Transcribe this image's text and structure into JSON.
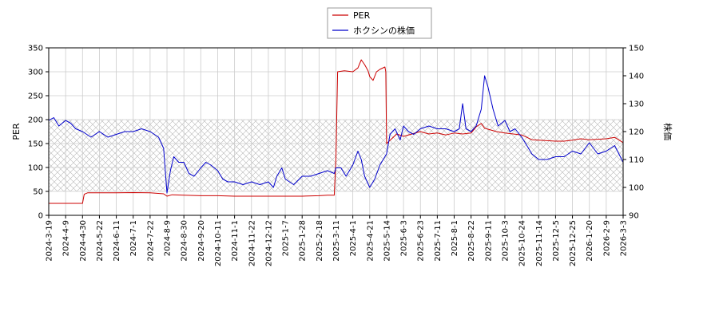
{
  "chart_data": {
    "type": "line",
    "title": "",
    "legend": {
      "placement": "top-center"
    },
    "grid": true,
    "band": {
      "axis": "left",
      "range": [
        50,
        200
      ],
      "style": "crosshatch"
    },
    "x_ticks": [
      "2024-3-19",
      "2024-4-9",
      "2024-4-30",
      "2024-5-22",
      "2024-6-11",
      "2024-7-1",
      "2024-7-22",
      "2024-8-9",
      "2024-8-30",
      "2024-9-20",
      "2024-10-11",
      "2024-11-1",
      "2024-11-22",
      "2024-12-12",
      "2025-1-7",
      "2025-1-28",
      "2025-2-18",
      "2025-3-11",
      "2025-4-1",
      "2025-4-21",
      "2025-5-14",
      "2025-6-3",
      "2025-6-23",
      "2025-7-11",
      "2025-8-1",
      "2025-8-22",
      "2025-9-11",
      "2025-10-3",
      "2025-10-24",
      "2025-11-14",
      "2025-12-5",
      "2025-12-25",
      "2026-1-20",
      "2026-2-9",
      "2026-3-3"
    ],
    "y_left": {
      "label": "PER",
      "ylim": [
        0,
        350
      ],
      "ticks": [
        0,
        50,
        100,
        150,
        200,
        250,
        300,
        350
      ]
    },
    "y_right": {
      "label": "株価",
      "ylim": [
        90,
        150
      ],
      "ticks": [
        90,
        100,
        110,
        120,
        130,
        140,
        150
      ]
    },
    "series": [
      {
        "name": "PER",
        "axis": "left",
        "color": "#cc0000",
        "points": [
          [
            0,
            25
          ],
          [
            1,
            25
          ],
          [
            2,
            25
          ],
          [
            2.1,
            44
          ],
          [
            2.3,
            47
          ],
          [
            3,
            47
          ],
          [
            4,
            47
          ],
          [
            5,
            47.5
          ],
          [
            6,
            47
          ],
          [
            6.8,
            45
          ],
          [
            7,
            40
          ],
          [
            7.3,
            43
          ],
          [
            8,
            42
          ],
          [
            9,
            41
          ],
          [
            10,
            41
          ],
          [
            11,
            40
          ],
          [
            12,
            40
          ],
          [
            13,
            40
          ],
          [
            14,
            40
          ],
          [
            15,
            40
          ],
          [
            16,
            41
          ],
          [
            16.5,
            42
          ],
          [
            16.9,
            42
          ],
          [
            17.0,
            120
          ],
          [
            17.1,
            300
          ],
          [
            17.5,
            302
          ],
          [
            18,
            300
          ],
          [
            18.3,
            308
          ],
          [
            18.5,
            325
          ],
          [
            18.7,
            315
          ],
          [
            18.9,
            302
          ],
          [
            19.0,
            290
          ],
          [
            19.2,
            282
          ],
          [
            19.4,
            300
          ],
          [
            19.6,
            305
          ],
          [
            19.9,
            310
          ],
          [
            19.95,
            300
          ],
          [
            20.0,
            150
          ],
          [
            20.3,
            160
          ],
          [
            20.6,
            170
          ],
          [
            21,
            165
          ],
          [
            21.5,
            170
          ],
          [
            22,
            175
          ],
          [
            22.5,
            170
          ],
          [
            23,
            172
          ],
          [
            23.5,
            168
          ],
          [
            24,
            172
          ],
          [
            24.5,
            170
          ],
          [
            25,
            172
          ],
          [
            25.3,
            185
          ],
          [
            25.6,
            192
          ],
          [
            25.8,
            182
          ],
          [
            26,
            180
          ],
          [
            26.5,
            175
          ],
          [
            27,
            172
          ],
          [
            27.5,
            170
          ],
          [
            28,
            168
          ],
          [
            28.3,
            163
          ],
          [
            28.6,
            158
          ],
          [
            29,
            157
          ],
          [
            30,
            155
          ],
          [
            30.5,
            155
          ],
          [
            31,
            157
          ],
          [
            31.5,
            160
          ],
          [
            32,
            158
          ],
          [
            33,
            160
          ],
          [
            33.5,
            163
          ],
          [
            34,
            152
          ],
          [
            34.5,
            153
          ],
          [
            35,
            150
          ]
        ]
      },
      {
        "name": "ホクシンの株価",
        "axis": "right",
        "color": "#0000cc",
        "points": [
          [
            0,
            124
          ],
          [
            0.3,
            125
          ],
          [
            0.6,
            122
          ],
          [
            1,
            124
          ],
          [
            1.3,
            123
          ],
          [
            1.6,
            121
          ],
          [
            2,
            120
          ],
          [
            2.5,
            118
          ],
          [
            3,
            120
          ],
          [
            3.5,
            118
          ],
          [
            4,
            119
          ],
          [
            4.5,
            120
          ],
          [
            5,
            120
          ],
          [
            5.5,
            121
          ],
          [
            6,
            120
          ],
          [
            6.5,
            118
          ],
          [
            6.8,
            114
          ],
          [
            7,
            98
          ],
          [
            7.2,
            106
          ],
          [
            7.4,
            111
          ],
          [
            7.7,
            109
          ],
          [
            8,
            109
          ],
          [
            8.3,
            105
          ],
          [
            8.6,
            104
          ],
          [
            9,
            107
          ],
          [
            9.3,
            109
          ],
          [
            9.6,
            108
          ],
          [
            10,
            106
          ],
          [
            10.3,
            103
          ],
          [
            10.6,
            102
          ],
          [
            11,
            102
          ],
          [
            11.5,
            101
          ],
          [
            12,
            102
          ],
          [
            12.5,
            101
          ],
          [
            13,
            102
          ],
          [
            13.3,
            100
          ],
          [
            13.5,
            104
          ],
          [
            13.8,
            107
          ],
          [
            14,
            103
          ],
          [
            14.5,
            101
          ],
          [
            15,
            104
          ],
          [
            15.5,
            104
          ],
          [
            16,
            105
          ],
          [
            16.5,
            106
          ],
          [
            16.9,
            105
          ],
          [
            17,
            107
          ],
          [
            17.3,
            107
          ],
          [
            17.6,
            104
          ],
          [
            18,
            108
          ],
          [
            18.3,
            113
          ],
          [
            18.5,
            110
          ],
          [
            18.7,
            104
          ],
          [
            19,
            100
          ],
          [
            19.3,
            103
          ],
          [
            19.6,
            108
          ],
          [
            20,
            112
          ],
          [
            20.2,
            119
          ],
          [
            20.5,
            121
          ],
          [
            20.8,
            117
          ],
          [
            21,
            122
          ],
          [
            21.3,
            120
          ],
          [
            21.6,
            119
          ],
          [
            22,
            121
          ],
          [
            22.5,
            122
          ],
          [
            23,
            121
          ],
          [
            23.5,
            121
          ],
          [
            24,
            120
          ],
          [
            24.3,
            121
          ],
          [
            24.5,
            130
          ],
          [
            24.7,
            121
          ],
          [
            25,
            120
          ],
          [
            25.3,
            122
          ],
          [
            25.6,
            128
          ],
          [
            25.8,
            140
          ],
          [
            26,
            136
          ],
          [
            26.3,
            128
          ],
          [
            26.6,
            122
          ],
          [
            27,
            124
          ],
          [
            27.3,
            120
          ],
          [
            27.6,
            121
          ],
          [
            28,
            118
          ],
          [
            28.3,
            115
          ],
          [
            28.6,
            112
          ],
          [
            29,
            110
          ],
          [
            29.5,
            110
          ],
          [
            30,
            111
          ],
          [
            30.5,
            111
          ],
          [
            31,
            113
          ],
          [
            31.5,
            112
          ],
          [
            32,
            116
          ],
          [
            32.5,
            112
          ],
          [
            33,
            113
          ],
          [
            33.5,
            115
          ],
          [
            34,
            109
          ],
          [
            34.5,
            110
          ],
          [
            35,
            109
          ]
        ]
      }
    ]
  }
}
